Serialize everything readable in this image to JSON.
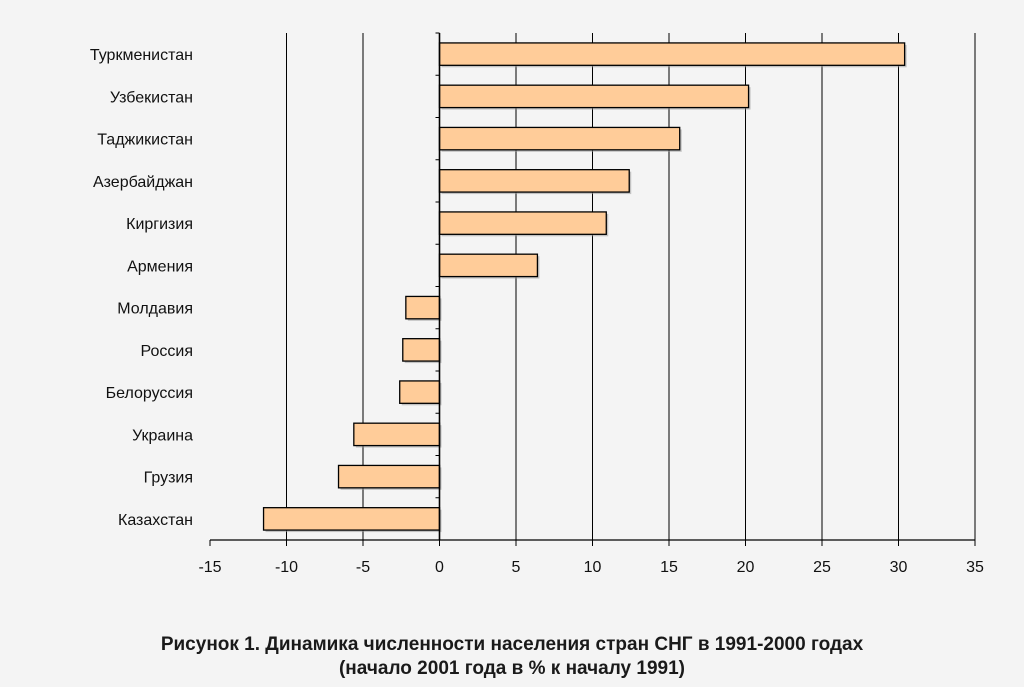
{
  "caption": {
    "line1": "Рисунок 1. Динамика численности населения стран СНГ в 1991-2000 годах",
    "line2": "(начало 2001 года в % к началу 1991)"
  },
  "chart_data": {
    "type": "bar",
    "orientation": "horizontal",
    "title": "",
    "xlabel": "",
    "ylabel": "",
    "categories": [
      "Туркменистан",
      "Узбекистан",
      "Таджикистан",
      "Азербайджан",
      "Киргизия",
      "Армения",
      "Молдавия",
      "Россия",
      "Белоруссия",
      "Украина",
      "Грузия",
      "Казахстан"
    ],
    "values": [
      30.4,
      20.2,
      15.7,
      12.4,
      10.9,
      6.4,
      -2.2,
      -2.4,
      -2.6,
      -5.6,
      -6.6,
      -11.5
    ],
    "xlim": [
      -15,
      35
    ],
    "xticks": [
      -15,
      -10,
      -5,
      0,
      5,
      10,
      15,
      20,
      25,
      30,
      35
    ],
    "grid": "vertical",
    "legend": "none",
    "bar_color": "#ffcc99",
    "bar_edge_color": "#000000",
    "grid_color": "#000000",
    "background_color": "#f4f4f4"
  }
}
